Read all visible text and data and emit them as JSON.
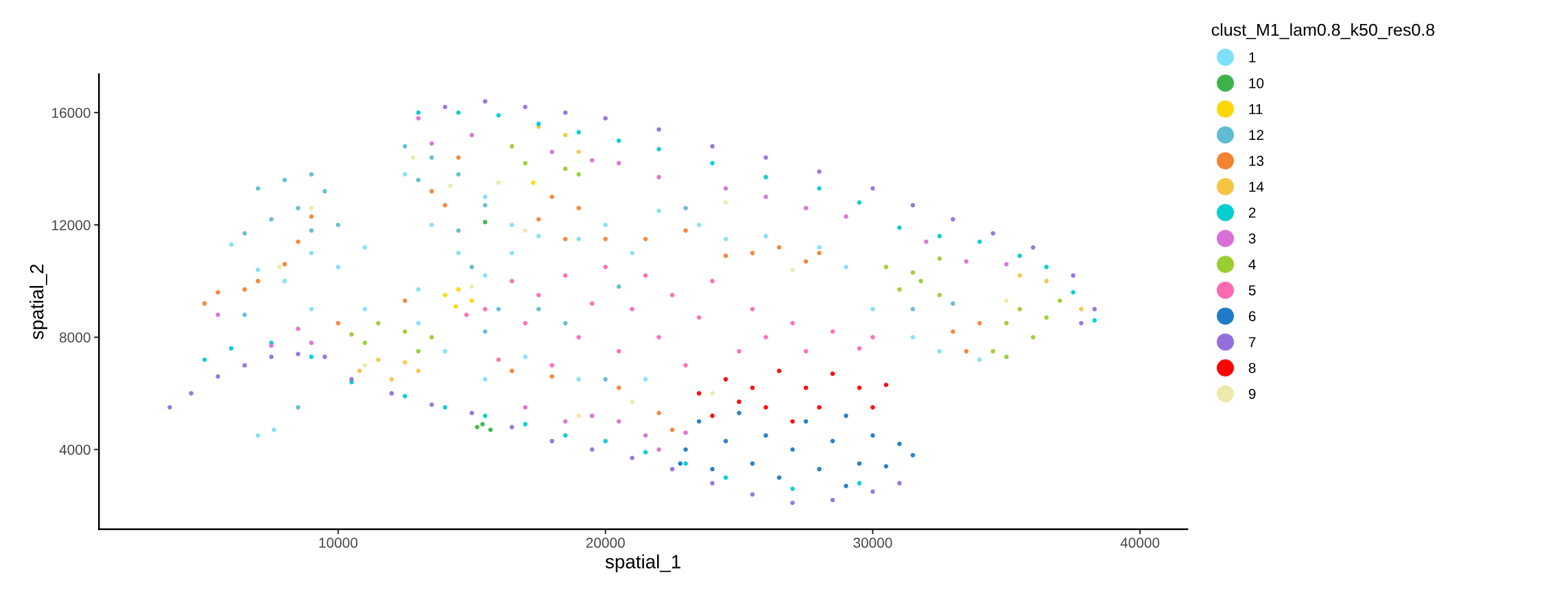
{
  "chart_data": {
    "type": "scatter",
    "xlabel": "spatial_1",
    "ylabel": "spatial_2",
    "legend_title": "clust_M1_lam0.8_k50_res0.8",
    "legend": "right",
    "grid": false,
    "marker": "circle",
    "xlim": [
      1050,
      41770
    ],
    "ylim": [
      1160,
      17370
    ],
    "xticks": [
      10000,
      20000,
      30000,
      40000
    ],
    "yticks": [
      4000,
      8000,
      12000,
      16000
    ],
    "series": [
      {
        "name": "1",
        "color": "#7fe0fa",
        "x": [
          6000,
          7000,
          8000,
          9000,
          10000,
          11000,
          12500,
          13500,
          14500,
          15500,
          16500,
          17500,
          19000,
          20000,
          21000,
          22000,
          23500,
          24500,
          26000,
          28000,
          29000,
          30000,
          31500,
          32500,
          34000,
          13000,
          14000,
          15500,
          17000,
          19000,
          21500,
          11000,
          9000,
          15500,
          16500,
          13000,
          7000,
          7600
        ],
        "values": [
          11300,
          10400,
          10000,
          11000,
          10500,
          11200,
          13800,
          12000,
          11000,
          13000,
          12000,
          11600,
          11500,
          12000,
          11000,
          12500,
          12000,
          11500,
          11600,
          11200,
          10500,
          9000,
          8000,
          7500,
          7200,
          8500,
          7500,
          6500,
          7300,
          6500,
          6500,
          9000,
          9000,
          10200,
          11000,
          9700,
          4500,
          4700
        ]
      },
      {
        "name": "10",
        "color": "#3cb44b",
        "x": [
          15500,
          15200,
          15700,
          15400
        ],
        "values": [
          12100,
          4800,
          4700,
          4900
        ]
      },
      {
        "name": "11",
        "color": "#ffd700",
        "x": [
          14000,
          14500,
          14400,
          15000,
          17300
        ],
        "values": [
          9500,
          9700,
          9100,
          9300,
          13500
        ]
      },
      {
        "name": "12",
        "color": "#5fbcd3",
        "x": [
          7000,
          8000,
          9000,
          9500,
          8500,
          7500,
          9000,
          6500,
          10000,
          12500,
          13500,
          14500,
          13000,
          15500,
          14500,
          15000,
          16000,
          15500,
          17500,
          18500,
          23000,
          20000,
          31500,
          33000,
          20500,
          6500,
          8500
        ],
        "values": [
          13300,
          13600,
          13800,
          13200,
          12600,
          12200,
          11800,
          11700,
          12000,
          14800,
          14400,
          13800,
          13600,
          12700,
          11800,
          10500,
          9000,
          8200,
          9000,
          8500,
          12600,
          6500,
          9000,
          9200,
          9800,
          8800,
          5500
        ]
      },
      {
        "name": "13",
        "color": "#f58231",
        "x": [
          5000,
          5500,
          6500,
          7000,
          8000,
          8500,
          9000,
          13500,
          14000,
          14500,
          17500,
          18000,
          19000,
          20000,
          21500,
          23000,
          24500,
          25500,
          26500,
          27500,
          10000,
          12500,
          16500,
          18000,
          20500,
          22000,
          22500,
          33000,
          33500,
          34000,
          18500,
          28000
        ],
        "values": [
          9200,
          9600,
          9700,
          10000,
          10600,
          11400,
          12300,
          13200,
          12700,
          14400,
          12200,
          13000,
          12600,
          11500,
          11500,
          11800,
          10900,
          11000,
          11200,
          10700,
          8500,
          9300,
          6800,
          6600,
          6200,
          5300,
          4700,
          8200,
          7500,
          8500,
          11500,
          11000
        ]
      },
      {
        "name": "14",
        "color": "#f6c443",
        "x": [
          10800,
          11500,
          12000,
          13000,
          12500,
          17500,
          18500,
          19000,
          35500,
          36500,
          37800
        ],
        "values": [
          6800,
          7200,
          6500,
          6800,
          7100,
          15500,
          15200,
          14600,
          10200,
          10000,
          9000
        ]
      },
      {
        "name": "2",
        "color": "#00ced1",
        "x": [
          13000,
          14500,
          16000,
          17500,
          19000,
          20500,
          22000,
          24000,
          26000,
          28000,
          29500,
          31000,
          32500,
          34000,
          35500,
          36500,
          37500,
          38300,
          5000,
          6000,
          7500,
          9000,
          10500,
          12500,
          14000,
          15500,
          17000,
          18500,
          20000,
          21500,
          23000,
          24500,
          27000,
          29500
        ],
        "values": [
          16000,
          16000,
          15900,
          15600,
          15300,
          15000,
          14700,
          14200,
          13700,
          13300,
          12800,
          11900,
          11600,
          11400,
          10900,
          10500,
          9600,
          8600,
          7200,
          7600,
          7800,
          7300,
          6400,
          5900,
          5500,
          5200,
          4900,
          4500,
          4300,
          3900,
          3500,
          3000,
          2600,
          2800
        ]
      },
      {
        "name": "3",
        "color": "#da70d6",
        "x": [
          13000,
          13500,
          15000,
          18000,
          19500,
          20500,
          22000,
          24500,
          26000,
          27500,
          29000,
          32000,
          33500,
          35000,
          9000,
          8500,
          5500,
          17000,
          18500,
          19500,
          20500,
          21500,
          22000,
          23000,
          7500
        ],
        "values": [
          15800,
          14900,
          15200,
          14600,
          14300,
          14200,
          13700,
          13300,
          13000,
          12600,
          12300,
          11400,
          10700,
          10600,
          7800,
          8300,
          8800,
          5500,
          5000,
          5200,
          5000,
          4500,
          4000,
          4600,
          7700
        ]
      },
      {
        "name": "4",
        "color": "#9acd32",
        "x": [
          10500,
          11500,
          12500,
          13000,
          13500,
          11000,
          16500,
          17000,
          18500,
          19000,
          30500,
          31500,
          32500,
          31000,
          32500,
          31800,
          34500,
          35000,
          35500,
          36500,
          36000,
          35000,
          37000
        ],
        "values": [
          8100,
          8500,
          8200,
          7500,
          8000,
          7800,
          14800,
          14200,
          14000,
          13800,
          10500,
          10300,
          10800,
          9700,
          9500,
          10000,
          7500,
          8500,
          9000,
          8700,
          8000,
          7300,
          9300
        ]
      },
      {
        "name": "5",
        "color": "#ff69b4",
        "x": [
          15500,
          16500,
          17000,
          17500,
          18500,
          19000,
          19500,
          20000,
          20500,
          21000,
          21500,
          22000,
          22500,
          23000,
          23500,
          24000,
          25000,
          25500,
          26000,
          27000,
          27500,
          28500,
          29500,
          30000,
          16000,
          18000,
          14800
        ],
        "values": [
          9000,
          10000,
          8500,
          9500,
          10200,
          8000,
          9200,
          10500,
          7500,
          9000,
          10200,
          8000,
          9500,
          7000,
          8700,
          10000,
          7500,
          9000,
          8000,
          8500,
          7500,
          8200,
          7600,
          8000,
          7200,
          7000,
          8800
        ]
      },
      {
        "name": "6",
        "color": "#1e7bc8",
        "x": [
          23000,
          23500,
          24000,
          24500,
          25000,
          25500,
          26000,
          26500,
          27000,
          27500,
          28000,
          28500,
          29000,
          29500,
          30000,
          30500,
          31000,
          31500,
          22800,
          29000
        ],
        "values": [
          4000,
          5000,
          3300,
          4300,
          5300,
          3500,
          4500,
          3000,
          4000,
          5000,
          3300,
          4300,
          5200,
          3500,
          4500,
          3400,
          4200,
          3800,
          3500,
          2700
        ]
      },
      {
        "name": "7",
        "color": "#9370db",
        "x": [
          3700,
          4500,
          5500,
          6500,
          7500,
          8500,
          9500,
          10500,
          12000,
          13500,
          15000,
          16500,
          18000,
          19500,
          21000,
          22500,
          24000,
          25500,
          27000,
          28500,
          30000,
          31000,
          14000,
          15500,
          17000,
          18500,
          20000,
          22000,
          24000,
          26000,
          28000,
          30000,
          31500,
          33000,
          34500,
          36000,
          37500,
          38300,
          37800
        ],
        "values": [
          5500,
          6000,
          6600,
          7000,
          7300,
          7400,
          7300,
          6500,
          6000,
          5600,
          5300,
          4800,
          4300,
          4000,
          3700,
          3300,
          2800,
          2400,
          2100,
          2200,
          2500,
          2800,
          16200,
          16400,
          16200,
          16000,
          15800,
          15400,
          14800,
          14400,
          13900,
          13300,
          12700,
          12200,
          11700,
          11200,
          10200,
          9000,
          8500
        ]
      },
      {
        "name": "8",
        "color": "#ff0000",
        "x": [
          23500,
          24000,
          24500,
          25500,
          26000,
          26500,
          27500,
          28000,
          28500,
          29500,
          30000,
          30500,
          27000,
          25000
        ],
        "values": [
          6000,
          5200,
          6500,
          6200,
          5500,
          6800,
          6200,
          5500,
          6700,
          6200,
          5500,
          6300,
          5000,
          5700
        ]
      },
      {
        "name": "9",
        "color": "#eee8aa",
        "x": [
          7800,
          9000,
          12800,
          14200,
          16000,
          15000,
          21000,
          24500,
          24000,
          19000,
          35000,
          27000,
          11000,
          17000
        ],
        "values": [
          10500,
          12600,
          14400,
          13400,
          13500,
          9800,
          5700,
          12800,
          6000,
          5200,
          9300,
          10400,
          7000,
          11800
        ]
      }
    ]
  }
}
